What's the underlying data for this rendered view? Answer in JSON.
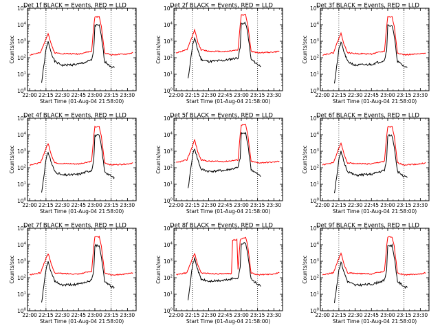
{
  "colors": {
    "events": "#000000",
    "lld": "#ff0000",
    "background": "#ffffff"
  },
  "common": {
    "ylabel": "Counts/sec",
    "xlabel": "Start Time (01-Aug-04 21:58:00)",
    "x_ticks": [
      "22:00",
      "22:15",
      "22:30",
      "22:45",
      "23:00",
      "23:15",
      "23:30"
    ],
    "y_ticks": [
      {
        "base": "10",
        "exp": "0"
      },
      {
        "base": "10",
        "exp": "1"
      },
      {
        "base": "10",
        "exp": "2"
      },
      {
        "base": "10",
        "exp": "3"
      },
      {
        "base": "10",
        "exp": "4"
      },
      {
        "base": "10",
        "exp": "5"
      }
    ]
  },
  "chart_data": [
    {
      "type": "line",
      "title": "Det 1f BLACK = Events, RED = LLD",
      "xlabel": "Start Time (01-Aug-04 21:58:00)",
      "ylabel": "Counts/sec",
      "y_scale": "log",
      "ylim": [
        1,
        100000
      ],
      "xlim": [
        "21:58",
        "23:38"
      ],
      "vlines": [
        "22:15",
        "23:15"
      ],
      "series": [
        {
          "name": "Events",
          "color": "#000000",
          "x": [
            "22:11",
            "22:15",
            "22:17",
            "22:20",
            "22:23",
            "22:30",
            "22:45",
            "22:57",
            "22:59",
            "23:00",
            "23:04",
            "23:06",
            "23:09",
            "23:15",
            "23:18"
          ],
          "y": [
            3,
            300,
            900,
            200,
            60,
            35,
            40,
            70,
            300,
            9000,
            9000,
            2000,
            60,
            30,
            25
          ]
        },
        {
          "name": "LLD",
          "color": "#ff0000",
          "x": [
            "22:00",
            "22:10",
            "22:15",
            "22:17",
            "22:20",
            "22:23",
            "22:30",
            "22:45",
            "22:57",
            "22:59",
            "23:00",
            "23:04",
            "23:06",
            "23:09",
            "23:15",
            "23:30",
            "23:35"
          ],
          "y": [
            150,
            200,
            1500,
            3000,
            600,
            200,
            180,
            170,
            250,
            8000,
            30000,
            30000,
            8000,
            200,
            150,
            170,
            200
          ]
        }
      ]
    },
    {
      "type": "line",
      "title": "Det 2f BLACK = Events, RED = LLD",
      "xlabel": "Start Time (01-Aug-04 21:58:00)",
      "ylabel": "Counts/sec",
      "y_scale": "log",
      "ylim": [
        1,
        100000
      ],
      "xlim": [
        "21:58",
        "23:38"
      ],
      "vlines": [
        "22:15",
        "23:15"
      ],
      "series": [
        {
          "name": "Events",
          "color": "#000000",
          "x": [
            "22:11",
            "22:15",
            "22:17",
            "22:20",
            "22:23",
            "22:30",
            "22:45",
            "22:57",
            "22:59",
            "23:00",
            "23:04",
            "23:06",
            "23:09",
            "23:15",
            "23:18"
          ],
          "y": [
            5,
            500,
            1500,
            300,
            80,
            60,
            70,
            100,
            400,
            12000,
            12000,
            3000,
            80,
            40,
            30
          ]
        },
        {
          "name": "LLD",
          "color": "#ff0000",
          "x": [
            "22:00",
            "22:10",
            "22:15",
            "22:17",
            "22:20",
            "22:23",
            "22:30",
            "22:45",
            "22:57",
            "22:59",
            "23:00",
            "23:04",
            "23:06",
            "23:09",
            "23:15",
            "23:30",
            "23:35"
          ],
          "y": [
            200,
            300,
            2000,
            5000,
            900,
            300,
            250,
            240,
            300,
            10000,
            40000,
            40000,
            10000,
            250,
            200,
            220,
            250
          ]
        }
      ]
    },
    {
      "type": "line",
      "title": "Det 3f BLACK = Events, RED = LLD",
      "xlabel": "Start Time (01-Aug-04 21:58:00)",
      "ylabel": "Counts/sec",
      "y_scale": "log",
      "ylim": [
        1,
        100000
      ],
      "xlim": [
        "21:58",
        "23:38"
      ],
      "vlines": [
        "22:15",
        "23:15"
      ],
      "series": [
        {
          "name": "Events",
          "color": "#000000",
          "x": [
            "22:11",
            "22:15",
            "22:17",
            "22:20",
            "22:23",
            "22:30",
            "22:45",
            "22:57",
            "22:59",
            "23:00",
            "23:04",
            "23:06",
            "23:09",
            "23:15",
            "23:18"
          ],
          "y": [
            3,
            300,
            900,
            200,
            60,
            35,
            40,
            70,
            300,
            9000,
            9000,
            2000,
            60,
            30,
            25
          ]
        },
        {
          "name": "LLD",
          "color": "#ff0000",
          "x": [
            "22:00",
            "22:10",
            "22:15",
            "22:17",
            "22:20",
            "22:23",
            "22:30",
            "22:45",
            "22:57",
            "22:59",
            "23:00",
            "23:04",
            "23:06",
            "23:09",
            "23:15",
            "23:30",
            "23:35"
          ],
          "y": [
            150,
            200,
            1500,
            3000,
            600,
            200,
            180,
            170,
            250,
            8000,
            30000,
            30000,
            8000,
            200,
            150,
            170,
            200
          ]
        }
      ]
    },
    {
      "type": "line",
      "title": "Det 4f BLACK = Events, RED = LLD",
      "xlabel": "Start Time (01-Aug-04 21:58:00)",
      "ylabel": "Counts/sec",
      "y_scale": "log",
      "ylim": [
        1,
        100000
      ],
      "xlim": [
        "21:58",
        "23:38"
      ],
      "vlines": [
        "22:15",
        "23:15"
      ],
      "series": [
        {
          "name": "Events",
          "color": "#000000",
          "x": [
            "22:11",
            "22:15",
            "22:17",
            "22:20",
            "22:23",
            "22:30",
            "22:45",
            "22:57",
            "22:59",
            "23:00",
            "23:04",
            "23:06",
            "23:09",
            "23:15",
            "23:18"
          ],
          "y": [
            3,
            300,
            900,
            200,
            60,
            35,
            40,
            70,
            300,
            9000,
            9000,
            2000,
            60,
            30,
            25
          ]
        },
        {
          "name": "LLD",
          "color": "#ff0000",
          "x": [
            "22:00",
            "22:10",
            "22:15",
            "22:17",
            "22:20",
            "22:23",
            "22:30",
            "22:45",
            "22:57",
            "22:59",
            "23:00",
            "23:04",
            "23:06",
            "23:09",
            "23:15",
            "23:30",
            "23:35"
          ],
          "y": [
            150,
            200,
            1500,
            3000,
            600,
            200,
            180,
            170,
            250,
            8000,
            30000,
            30000,
            8000,
            200,
            150,
            170,
            200
          ]
        }
      ]
    },
    {
      "type": "line",
      "title": "Det 5f BLACK = Events, RED = LLD",
      "xlabel": "Start Time (01-Aug-04 21:58:00)",
      "ylabel": "Counts/sec",
      "y_scale": "log",
      "ylim": [
        1,
        100000
      ],
      "xlim": [
        "21:58",
        "23:38"
      ],
      "vlines": [
        "22:15",
        "23:15"
      ],
      "series": [
        {
          "name": "Events",
          "color": "#000000",
          "x": [
            "22:11",
            "22:15",
            "22:17",
            "22:20",
            "22:23",
            "22:30",
            "22:45",
            "22:57",
            "22:59",
            "23:00",
            "23:04",
            "23:06",
            "23:09",
            "23:15",
            "23:18"
          ],
          "y": [
            5,
            500,
            1500,
            300,
            80,
            60,
            70,
            100,
            400,
            12000,
            12000,
            3000,
            80,
            40,
            30
          ]
        },
        {
          "name": "LLD",
          "color": "#ff0000",
          "x": [
            "22:00",
            "22:10",
            "22:15",
            "22:17",
            "22:20",
            "22:23",
            "22:30",
            "22:45",
            "22:57",
            "22:59",
            "23:00",
            "23:04",
            "23:06",
            "23:09",
            "23:15",
            "23:30",
            "23:35"
          ],
          "y": [
            200,
            300,
            2000,
            5000,
            900,
            300,
            250,
            240,
            300,
            10000,
            40000,
            40000,
            10000,
            250,
            200,
            220,
            250
          ]
        }
      ]
    },
    {
      "type": "line",
      "title": "Det 6f BLACK = Events, RED = LLD",
      "xlabel": "Start Time (01-Aug-04 21:58:00)",
      "ylabel": "Counts/sec",
      "y_scale": "log",
      "ylim": [
        1,
        100000
      ],
      "xlim": [
        "21:58",
        "23:38"
      ],
      "vlines": [
        "22:15",
        "23:15"
      ],
      "series": [
        {
          "name": "Events",
          "color": "#000000",
          "x": [
            "22:11",
            "22:15",
            "22:17",
            "22:20",
            "22:23",
            "22:30",
            "22:45",
            "22:57",
            "22:59",
            "23:00",
            "23:04",
            "23:06",
            "23:09",
            "23:15",
            "23:18"
          ],
          "y": [
            3,
            300,
            900,
            200,
            60,
            35,
            40,
            70,
            300,
            9000,
            9000,
            2000,
            60,
            30,
            25
          ]
        },
        {
          "name": "LLD",
          "color": "#ff0000",
          "x": [
            "22:00",
            "22:10",
            "22:15",
            "22:17",
            "22:20",
            "22:23",
            "22:30",
            "22:45",
            "22:57",
            "22:59",
            "23:00",
            "23:04",
            "23:06",
            "23:09",
            "23:15",
            "23:30",
            "23:35"
          ],
          "y": [
            150,
            200,
            1500,
            3000,
            600,
            200,
            180,
            170,
            250,
            8000,
            30000,
            30000,
            8000,
            200,
            150,
            170,
            200
          ]
        }
      ]
    },
    {
      "type": "line",
      "title": "Det 7f BLACK = Events, RED = LLD",
      "xlabel": "Start Time (01-Aug-04 21:58:00)",
      "ylabel": "Counts/sec",
      "y_scale": "log",
      "ylim": [
        1,
        100000
      ],
      "xlim": [
        "21:58",
        "23:38"
      ],
      "vlines": [
        "22:15",
        "23:15"
      ],
      "series": [
        {
          "name": "Events",
          "color": "#000000",
          "x": [
            "22:11",
            "22:15",
            "22:17",
            "22:20",
            "22:23",
            "22:30",
            "22:45",
            "22:57",
            "22:59",
            "23:00",
            "23:04",
            "23:06",
            "23:09",
            "23:15",
            "23:18"
          ],
          "y": [
            3,
            300,
            900,
            200,
            60,
            35,
            40,
            70,
            300,
            9000,
            9000,
            2000,
            60,
            30,
            25
          ]
        },
        {
          "name": "LLD",
          "color": "#ff0000",
          "x": [
            "22:00",
            "22:10",
            "22:15",
            "22:17",
            "22:20",
            "22:23",
            "22:30",
            "22:45",
            "22:57",
            "22:59",
            "23:00",
            "23:04",
            "23:06",
            "23:09",
            "23:15",
            "23:30",
            "23:35"
          ],
          "y": [
            150,
            200,
            1500,
            3000,
            600,
            200,
            180,
            170,
            250,
            8000,
            30000,
            30000,
            8000,
            200,
            150,
            170,
            200
          ]
        }
      ]
    },
    {
      "type": "line",
      "title": "Det 8f BLACK = Events, RED = LLD",
      "xlabel": "Start Time (01-Aug-04 21:58:00)",
      "ylabel": "Counts/sec",
      "y_scale": "log",
      "ylim": [
        1,
        100000
      ],
      "xlim": [
        "21:58",
        "23:38"
      ],
      "vlines": [
        "22:15",
        "23:15"
      ],
      "series": [
        {
          "name": "Events",
          "color": "#000000",
          "x": [
            "22:11",
            "22:15",
            "22:17",
            "22:20",
            "22:23",
            "22:30",
            "22:45",
            "22:57",
            "22:59",
            "23:00",
            "23:04",
            "23:06",
            "23:09",
            "23:15",
            "23:18"
          ],
          "y": [
            5,
            500,
            1500,
            300,
            80,
            60,
            70,
            100,
            400,
            12000,
            12000,
            3000,
            80,
            40,
            30
          ]
        },
        {
          "name": "LLD",
          "color": "#ff0000",
          "x": [
            "22:00",
            "22:10",
            "22:15",
            "22:17",
            "22:20",
            "22:23",
            "22:30",
            "22:45",
            "22:51",
            "22:52",
            "22:56",
            "22:57",
            "22:59",
            "23:04",
            "23:06",
            "23:09",
            "23:15",
            "23:30",
            "23:35"
          ],
          "y": [
            150,
            200,
            1500,
            3000,
            600,
            200,
            180,
            170,
            180,
            20000,
            20000,
            300,
            20000,
            30000,
            8000,
            200,
            150,
            170,
            200
          ]
        }
      ]
    },
    {
      "type": "line",
      "title": "Det 9f BLACK = Events, RED = LLD",
      "xlabel": "Start Time (01-Aug-04 21:58:00)",
      "ylabel": "Counts/sec",
      "y_scale": "log",
      "ylim": [
        1,
        100000
      ],
      "xlim": [
        "21:58",
        "23:38"
      ],
      "vlines": [
        "22:15",
        "23:15"
      ],
      "series": [
        {
          "name": "Events",
          "color": "#000000",
          "x": [
            "22:11",
            "22:15",
            "22:17",
            "22:20",
            "22:23",
            "22:30",
            "22:45",
            "22:57",
            "22:59",
            "23:00",
            "23:04",
            "23:06",
            "23:09",
            "23:15",
            "23:18"
          ],
          "y": [
            3,
            300,
            900,
            200,
            60,
            35,
            40,
            70,
            300,
            9000,
            9000,
            2000,
            60,
            30,
            25
          ]
        },
        {
          "name": "LLD",
          "color": "#ff0000",
          "x": [
            "22:00",
            "22:10",
            "22:15",
            "22:17",
            "22:20",
            "22:23",
            "22:30",
            "22:45",
            "22:57",
            "22:59",
            "23:00",
            "23:04",
            "23:06",
            "23:09",
            "23:15",
            "23:30",
            "23:35"
          ],
          "y": [
            150,
            200,
            1500,
            3000,
            600,
            200,
            180,
            170,
            250,
            8000,
            30000,
            30000,
            8000,
            200,
            150,
            170,
            200
          ]
        }
      ]
    }
  ]
}
